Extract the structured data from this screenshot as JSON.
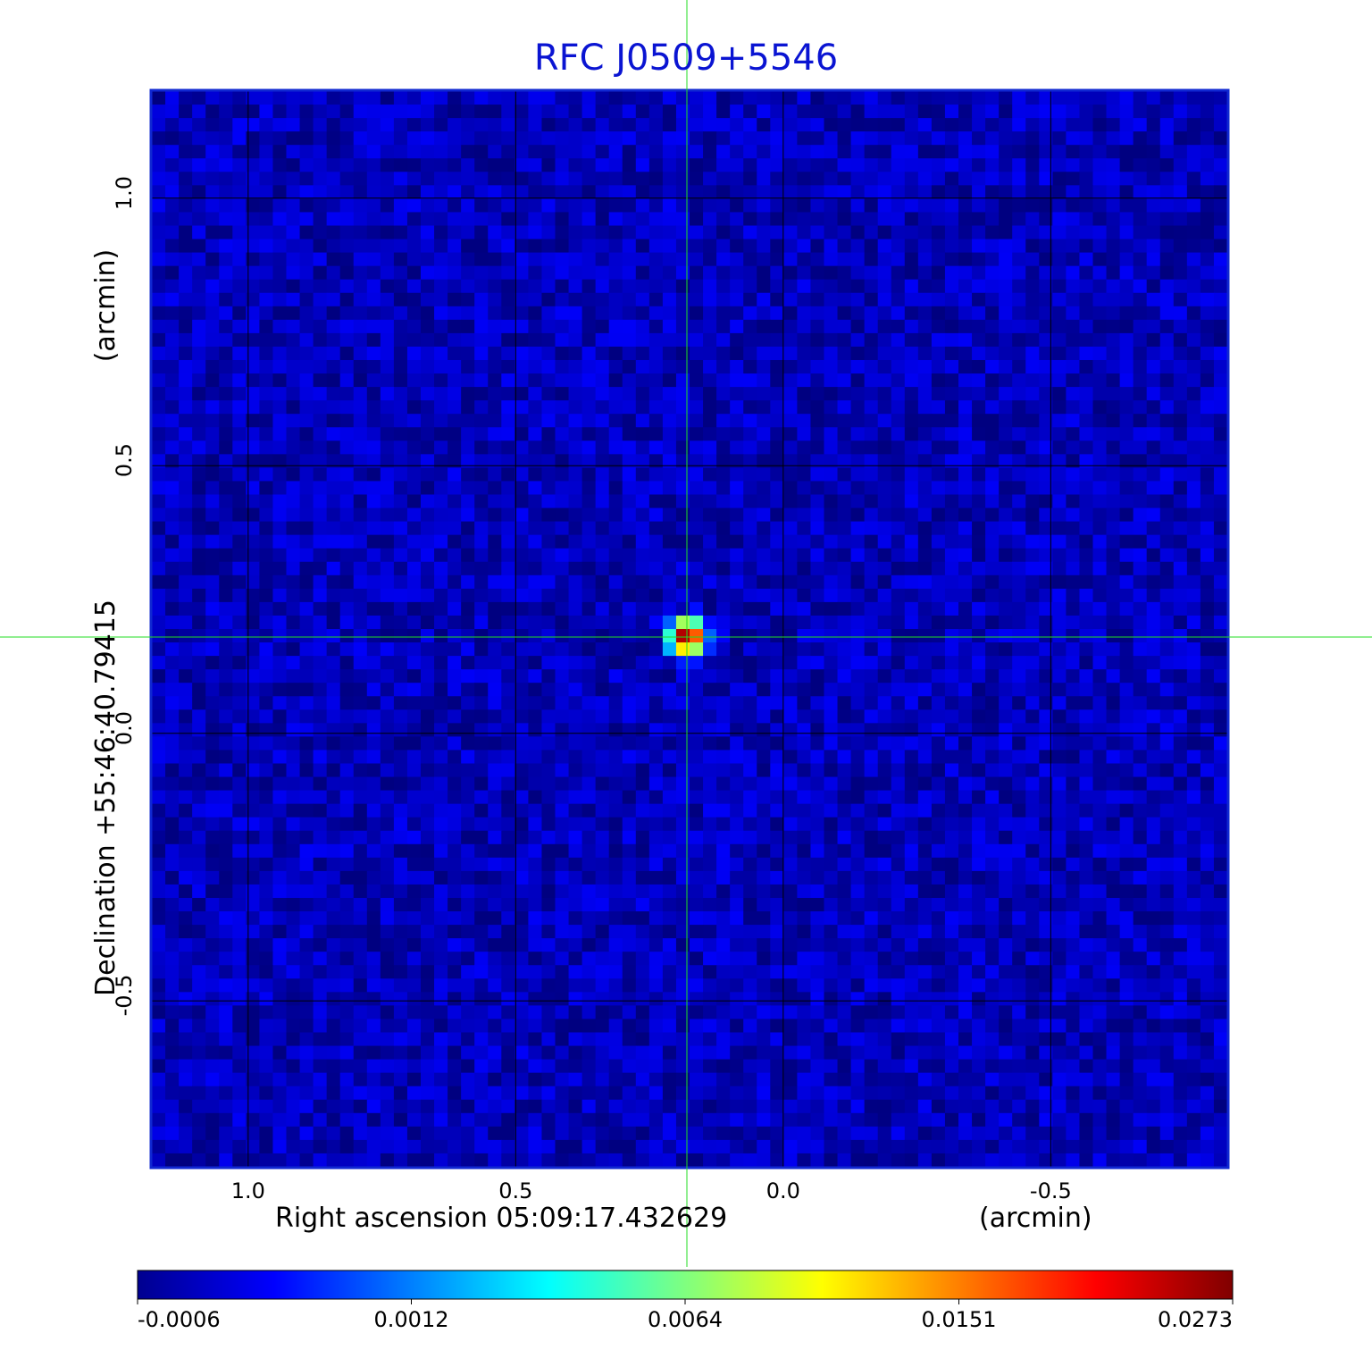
{
  "chart_data": {
    "type": "heatmap",
    "title": "RFC J0509+5546",
    "xlabel": "Right ascension  05:09:17.432629",
    "xunit": "(arcmin)",
    "ylabel": "Declination  +55:46:40.79415",
    "yunit": "(arcmin)",
    "xlim": [
      1.18,
      -0.83
    ],
    "ylim": [
      -0.81,
      1.2
    ],
    "xticks": [
      1.0,
      0.5,
      0.0,
      -0.5
    ],
    "xtick_labels": [
      "1.0",
      "0.5",
      "0.0",
      "-0.5"
    ],
    "yticks": [
      1.0,
      0.5,
      0.0,
      -0.5
    ],
    "ytick_labels": [
      "1.0",
      "0.5",
      "0.0",
      "-0.5"
    ],
    "grid": true,
    "colormap": "jet",
    "colorbar": {
      "ticks": [
        -0.0006,
        0.0012,
        0.0064,
        0.0151,
        0.0273
      ],
      "tick_labels": [
        "-0.0006",
        "0.0012",
        "0.0064",
        "0.0151",
        "0.0273"
      ],
      "orientation": "horizontal",
      "placement": "bottom"
    },
    "source": {
      "x": 0.18,
      "y": 0.18,
      "peak": 0.0273
    },
    "crosshair": {
      "x": 0.18,
      "y": 0.18
    },
    "background_level": -0.0002,
    "colors": {
      "title": "#0a14d2",
      "frame": "#1028d2",
      "grid": "#000000",
      "crosshair": "#22dd22"
    }
  }
}
